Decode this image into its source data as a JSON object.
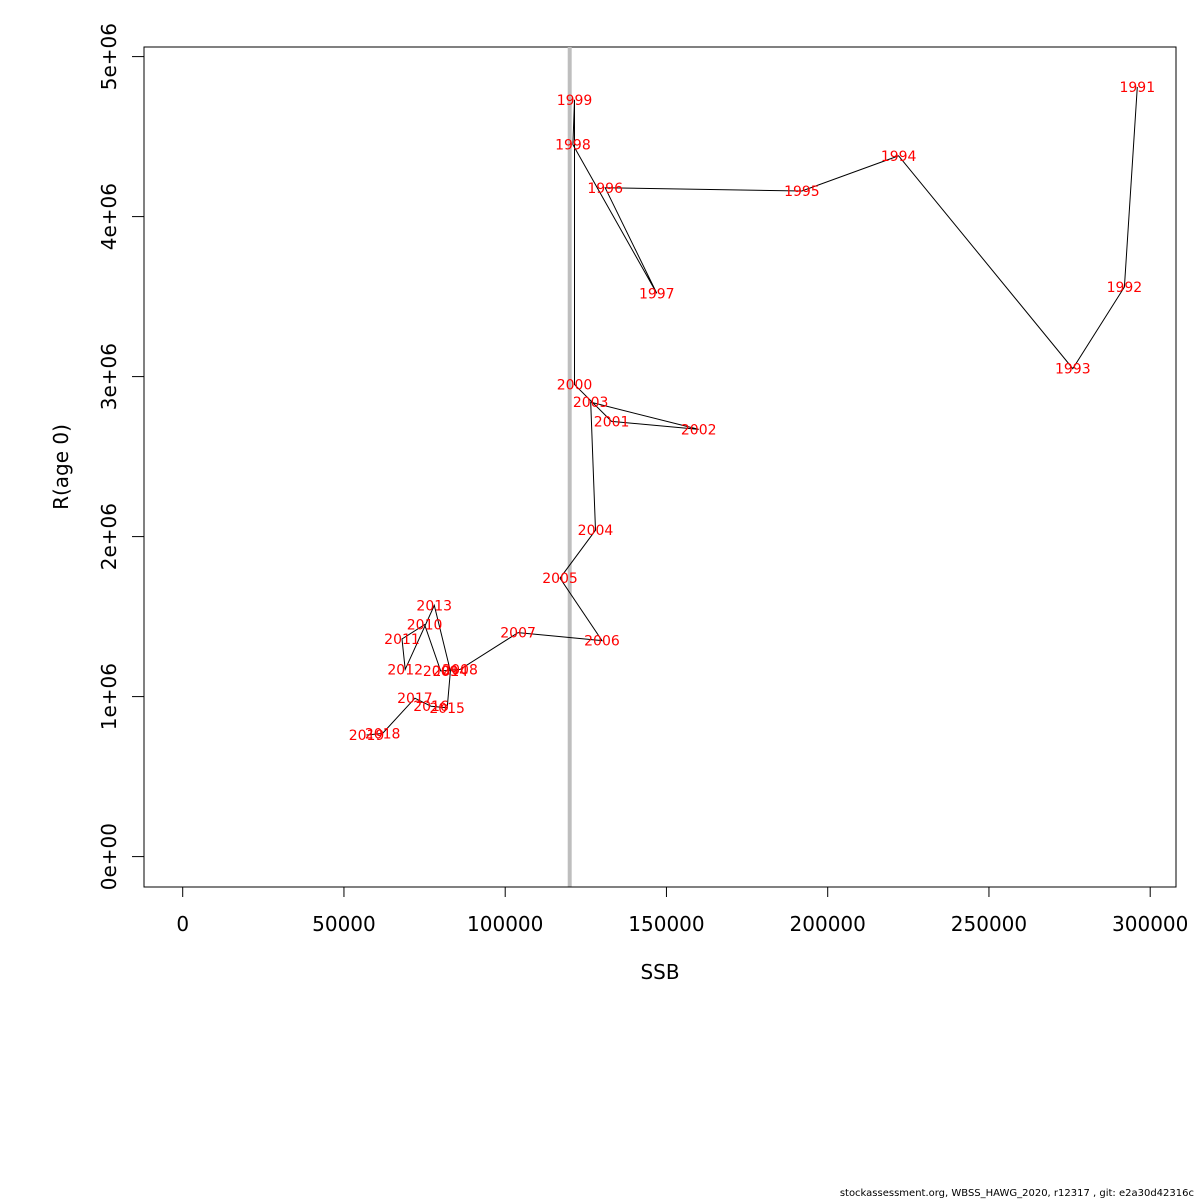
{
  "chart_data": {
    "type": "line",
    "title": "",
    "xlabel": "SSB",
    "ylabel": "R(age 0)",
    "xlim": [
      -12000,
      308000
    ],
    "ylim": [
      -190000,
      5060000
    ],
    "x_ticks": [
      {
        "value": 0,
        "label": "0"
      },
      {
        "value": 50000,
        "label": "50000"
      },
      {
        "value": 100000,
        "label": "100000"
      },
      {
        "value": 150000,
        "label": "150000"
      },
      {
        "value": 200000,
        "label": "200000"
      },
      {
        "value": 250000,
        "label": "250000"
      },
      {
        "value": 300000,
        "label": "300000"
      }
    ],
    "y_ticks": [
      {
        "value": 0,
        "label": "0e+00"
      },
      {
        "value": 1000000,
        "label": "1e+06"
      },
      {
        "value": 2000000,
        "label": "2e+06"
      },
      {
        "value": 3000000,
        "label": "3e+06"
      },
      {
        "value": 4000000,
        "label": "4e+06"
      },
      {
        "value": 5000000,
        "label": "5e+06"
      }
    ],
    "reference_line": {
      "axis": "x",
      "value": 120000,
      "color": "#bebebe"
    },
    "line_color": "#000000",
    "label_color": "#ff0000",
    "grid": false,
    "points": [
      {
        "label": "1991",
        "x": 296000,
        "y": 4810000
      },
      {
        "label": "1992",
        "x": 292000,
        "y": 3560000
      },
      {
        "label": "1993",
        "x": 276000,
        "y": 3050000
      },
      {
        "label": "1994",
        "x": 222000,
        "y": 4380000
      },
      {
        "label": "1995",
        "x": 192000,
        "y": 4160000
      },
      {
        "label": "1996",
        "x": 131000,
        "y": 4180000
      },
      {
        "label": "1997",
        "x": 147000,
        "y": 3520000
      },
      {
        "label": "1998",
        "x": 121000,
        "y": 4450000
      },
      {
        "label": "1999",
        "x": 121500,
        "y": 4730000
      },
      {
        "label": "2000",
        "x": 121500,
        "y": 2950000
      },
      {
        "label": "2001",
        "x": 133000,
        "y": 2720000
      },
      {
        "label": "2002",
        "x": 160000,
        "y": 2670000
      },
      {
        "label": "2003",
        "x": 126500,
        "y": 2840000
      },
      {
        "label": "2004",
        "x": 128000,
        "y": 2040000
      },
      {
        "label": "2005",
        "x": 117000,
        "y": 1740000
      },
      {
        "label": "2006",
        "x": 130000,
        "y": 1350000
      },
      {
        "label": "2007",
        "x": 104000,
        "y": 1400000
      },
      {
        "label": "2008",
        "x": 86000,
        "y": 1170000
      },
      {
        "label": "2009",
        "x": 80000,
        "y": 1160000
      },
      {
        "label": "2010",
        "x": 75000,
        "y": 1450000
      },
      {
        "label": "2011",
        "x": 68000,
        "y": 1360000
      },
      {
        "label": "2012",
        "x": 69000,
        "y": 1170000
      },
      {
        "label": "2013",
        "x": 78000,
        "y": 1570000
      },
      {
        "label": "2014",
        "x": 83000,
        "y": 1160000
      },
      {
        "label": "2015",
        "x": 82000,
        "y": 930000
      },
      {
        "label": "2016",
        "x": 77000,
        "y": 940000
      },
      {
        "label": "2017",
        "x": 72000,
        "y": 990000
      },
      {
        "label": "2018",
        "x": 62000,
        "y": 770000
      },
      {
        "label": "2019",
        "x": 57000,
        "y": 760000
      }
    ]
  },
  "footer": "stockassessment.org, WBSS_HAWG_2020, r12317 , git: e2a30d42316c"
}
